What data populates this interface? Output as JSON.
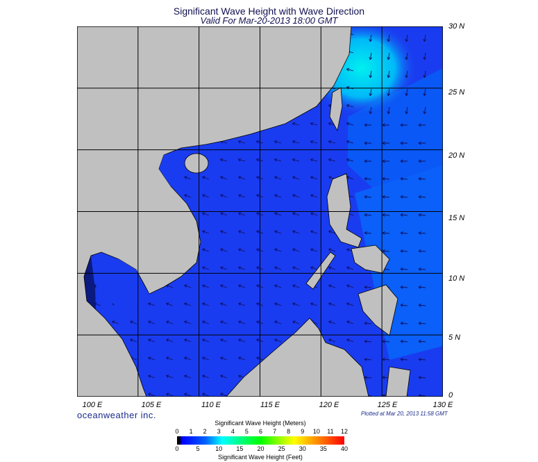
{
  "title": "Significant Wave Height with Wave Direction",
  "subtitle": "Valid For Mar-20-2013 18:00 GMT",
  "lat_labels": [
    "30 N",
    "25 N",
    "20 N",
    "15 N",
    "10 N",
    "5 N",
    "0"
  ],
  "lon_labels": [
    "100 E",
    "105 E",
    "110 E",
    "115 E",
    "120 E",
    "125 E",
    "130 E"
  ],
  "logo": "oceanweather inc.",
  "plotted": "Plotted at Mar 20, 2013 11:58 GMT",
  "colorbar": {
    "title_meters": "Significant Wave Height (Meters)",
    "title_feet": "Significant Wave Height (Feet)",
    "meters_ticks": [
      "0",
      "1",
      "2",
      "3",
      "4",
      "5",
      "6",
      "7",
      "8",
      "9",
      "10",
      "11",
      "12"
    ],
    "feet_ticks": [
      "0",
      "5",
      "10",
      "15",
      "20",
      "25",
      "30",
      "35",
      "40"
    ],
    "colors": [
      "#000000",
      "#0000ff",
      "#0060ff",
      "#00ffff",
      "#00ff80",
      "#00ff00",
      "#ffff00",
      "#ff8000",
      "#ff0000"
    ]
  },
  "map": {
    "land_color": "#c0c0c0",
    "ocean_color": "#1a3cf0",
    "lon_range": [
      100,
      130
    ],
    "lat_range": [
      0,
      30
    ],
    "predominant_wave_direction": "toward southwest"
  }
}
